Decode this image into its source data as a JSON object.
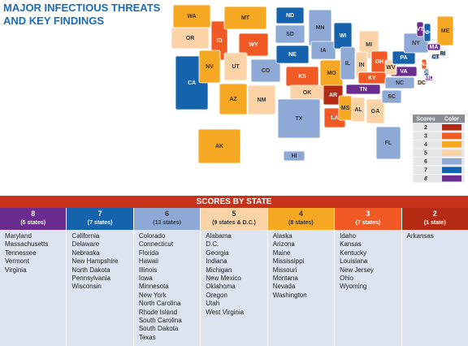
{
  "header": {
    "title_lines": [
      "MAJOR INFECTIOUS THREATS",
      "AND KEY FINDINGS"
    ]
  },
  "map": {
    "states": [
      {
        "label": "WA",
        "score": 4
      },
      {
        "label": "OR",
        "score": 5
      },
      {
        "label": "CA",
        "score": 7
      },
      {
        "label": "ID",
        "score": 3
      },
      {
        "label": "NV",
        "score": 4
      },
      {
        "label": "MT",
        "score": 4
      },
      {
        "label": "WY",
        "score": 3
      },
      {
        "label": "UT",
        "score": 5
      },
      {
        "label": "AZ",
        "score": 4
      },
      {
        "label": "CO",
        "score": 6
      },
      {
        "label": "NM",
        "score": 5
      },
      {
        "label": "ND",
        "score": 7
      },
      {
        "label": "SD",
        "score": 6
      },
      {
        "label": "NE",
        "score": 7
      },
      {
        "label": "KS",
        "score": 3
      },
      {
        "label": "OK",
        "score": 5
      },
      {
        "label": "TX",
        "score": 6
      },
      {
        "label": "MN",
        "score": 6
      },
      {
        "label": "IA",
        "score": 6
      },
      {
        "label": "MO",
        "score": 4
      },
      {
        "label": "AR",
        "score": 2
      },
      {
        "label": "LA",
        "score": 3
      },
      {
        "label": "WI",
        "score": 7
      },
      {
        "label": "IL",
        "score": 6
      },
      {
        "label": "MI",
        "score": 5
      },
      {
        "label": "IN",
        "score": 5
      },
      {
        "label": "OH",
        "score": 3
      },
      {
        "label": "KY",
        "score": 3
      },
      {
        "label": "TN",
        "score": 8
      },
      {
        "label": "MS",
        "score": 4
      },
      {
        "label": "AL",
        "score": 5
      },
      {
        "label": "GA",
        "score": 5
      },
      {
        "label": "FL",
        "score": 6
      },
      {
        "label": "SC",
        "score": 6
      },
      {
        "label": "NC",
        "score": 6
      },
      {
        "label": "VA",
        "score": 8
      },
      {
        "label": "WV",
        "score": 5
      },
      {
        "label": "PA",
        "score": 7
      },
      {
        "label": "NY",
        "score": 6
      },
      {
        "label": "VT",
        "score": 8
      },
      {
        "label": "NH",
        "score": 7
      },
      {
        "label": "ME",
        "score": 4
      },
      {
        "label": "MA",
        "score": 8
      },
      {
        "label": "RI",
        "score": 6
      },
      {
        "label": "CT",
        "score": 6
      },
      {
        "label": "NJ",
        "score": 3
      },
      {
        "label": "DE",
        "score": 7
      },
      {
        "label": "MD",
        "score": 8
      },
      {
        "label": "DC",
        "score": 5
      },
      {
        "label": "AK",
        "score": 4
      },
      {
        "label": "HI",
        "score": 6
      }
    ]
  },
  "legend": {
    "headers": [
      "Scores",
      "Color"
    ],
    "rows": [
      {
        "score": 2,
        "color": "#b52a12"
      },
      {
        "score": 3,
        "color": "#f15a24"
      },
      {
        "score": 4,
        "color": "#f7a823"
      },
      {
        "score": 5,
        "color": "#fbd3a6"
      },
      {
        "score": 6,
        "color": "#8fa9d6"
      },
      {
        "score": 7,
        "color": "#1562ad"
      },
      {
        "score": 8,
        "color": "#6a2c8f"
      }
    ]
  },
  "table": {
    "title": "SCORES BY STATE",
    "columns": [
      {
        "score": 8,
        "count": "(5 states)",
        "states": [
          "Maryland",
          "Massachusetts",
          "Tennessee",
          "Vermont",
          "Virginia"
        ]
      },
      {
        "score": 7,
        "count": "(7 states)",
        "states": [
          "California",
          "Delaware",
          "Nebraska",
          "New Hampshire",
          "North Dakota",
          "Pennsylvania",
          "Wisconsin"
        ]
      },
      {
        "score": 6,
        "count": "(13 states)",
        "states": [
          "Colorado",
          "Connecticut",
          "Florida",
          "Hawaii",
          "Illinois",
          "Iowa",
          "Minnesota",
          "New York",
          "North Carolina",
          "Rhode Island",
          "South Carolina",
          "South Dakota",
          "Texas"
        ]
      },
      {
        "score": 5,
        "count": "(9 states & D.C.)",
        "states": [
          "Alabama",
          "D.C.",
          "Georgia",
          "Indiana",
          "Michigan",
          "New Mexico",
          "Oklahoma",
          "Oregon",
          "Utah",
          "West Virginia"
        ]
      },
      {
        "score": 4,
        "count": "(8 states)",
        "states": [
          "Alaska",
          "Arizona",
          "Maine",
          "Mississippi",
          "Missouri",
          "Montana",
          "Nevada",
          "Washington"
        ]
      },
      {
        "score": 3,
        "count": "(7 states)",
        "states": [
          "Idaho",
          "Kansas",
          "Kentucky",
          "Louisiana",
          "New Jersey",
          "Ohio",
          "Wyoming"
        ]
      },
      {
        "score": 2,
        "count": "(1 state)",
        "states": [
          "Arkansas"
        ]
      }
    ]
  }
}
